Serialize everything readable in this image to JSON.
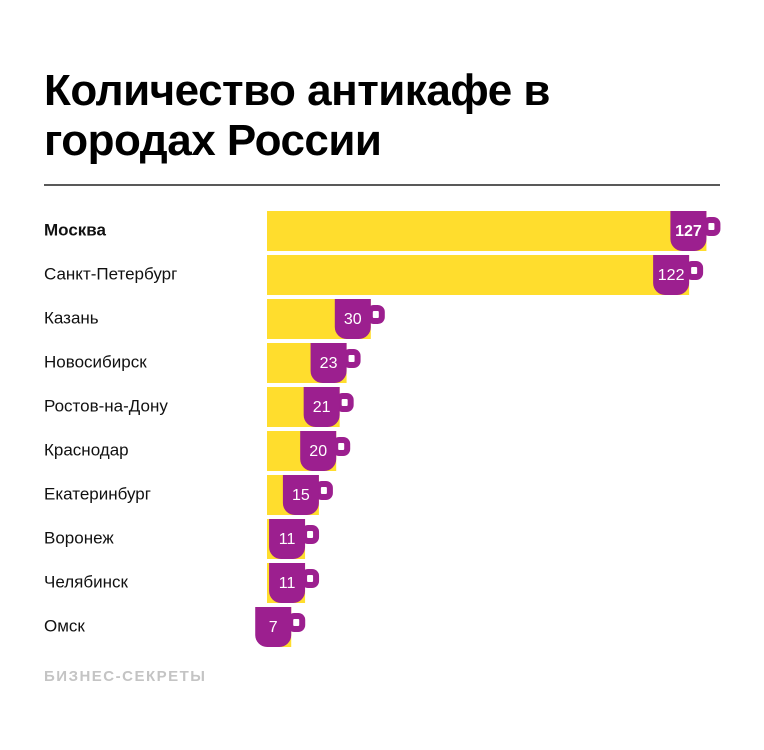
{
  "chart_data": {
    "type": "bar",
    "title": "Количество антикафе в городах России",
    "categories": [
      "Москва",
      "Санкт-Петербург",
      "Казань",
      "Новосибирск",
      "Ростов-на-Дону",
      "Краснодар",
      "Екатеринбург",
      "Воронеж",
      "Челябинск",
      "Омск"
    ],
    "values": [
      127,
      122,
      30,
      23,
      21,
      20,
      15,
      11,
      11,
      7
    ],
    "color": "#ffdd2d",
    "label_color": "#9c1f8f",
    "source": "БИЗНЕС-СЕКРЕТЫ"
  }
}
